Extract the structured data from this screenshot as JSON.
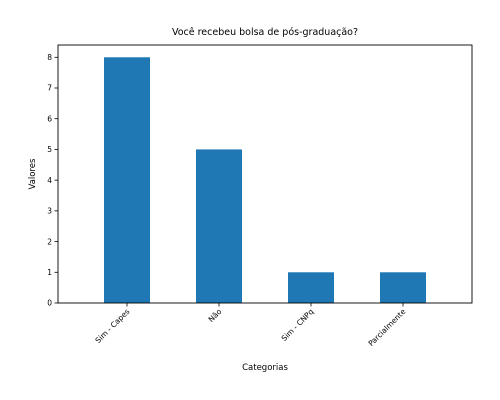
{
  "chart_data": {
    "type": "bar",
    "title": "Você recebeu bolsa de pós-graduação?",
    "xlabel": "Categorias",
    "ylabel": "Valores",
    "categories": [
      "Sim - Capes",
      "Não",
      "Sim - CNPq",
      "Parcialmente"
    ],
    "values": [
      8,
      5,
      1,
      1
    ],
    "ylim": [
      0,
      8.4
    ],
    "yticks": [
      0,
      1,
      2,
      3,
      4,
      5,
      6,
      7,
      8
    ],
    "grid": false,
    "legend": "none",
    "bar_color": "#1f77b4"
  }
}
